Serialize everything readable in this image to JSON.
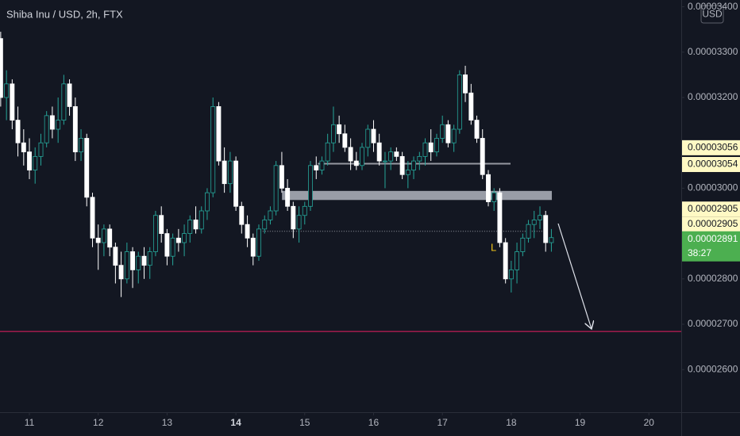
{
  "chart_data": {
    "type": "candlestick",
    "title": "Shiba Inu / USD, 2h, FTX",
    "currency": "USD",
    "countdown": "38:27",
    "annotation": "L",
    "x": [
      10.583,
      10.667,
      10.75,
      10.833,
      10.917,
      11,
      11.083,
      11.167,
      11.25,
      11.333,
      11.417,
      11.5,
      11.583,
      11.667,
      11.75,
      11.833,
      11.917,
      12,
      12.083,
      12.167,
      12.25,
      12.333,
      12.417,
      12.5,
      12.583,
      12.667,
      12.75,
      12.833,
      12.917,
      13,
      13.083,
      13.167,
      13.25,
      13.333,
      13.417,
      13.5,
      13.583,
      13.667,
      13.75,
      13.833,
      13.917,
      14,
      14.083,
      14.167,
      14.25,
      14.333,
      14.417,
      14.5,
      14.583,
      14.667,
      14.75,
      14.833,
      14.917,
      15,
      15.083,
      15.167,
      15.25,
      15.333,
      15.417,
      15.5,
      15.583,
      15.667,
      15.75,
      15.833,
      15.917,
      16,
      16.083,
      16.167,
      16.25,
      16.333,
      16.417,
      16.5,
      16.583,
      16.667,
      16.75,
      16.833,
      16.917,
      17,
      17.083,
      17.167,
      17.25,
      17.333,
      17.417,
      17.5,
      17.583,
      17.667,
      17.75,
      17.833,
      17.917,
      18,
      18.083,
      18.167,
      18.25,
      18.333,
      18.417,
      18.5,
      18.583
    ],
    "open": [
      3.33e-05,
      3.2e-05,
      3.23e-05,
      3.15e-05,
      3.1e-05,
      3.08e-05,
      3.04e-05,
      3.07e-05,
      3.1e-05,
      3.16e-05,
      3.13e-05,
      3.15e-05,
      3.23e-05,
      3.18e-05,
      3.08e-05,
      3.11e-05,
      2.98e-05,
      2.89e-05,
      2.88e-05,
      2.91e-05,
      2.87e-05,
      2.83e-05,
      2.8e-05,
      2.86e-05,
      2.82e-05,
      2.85e-05,
      2.83e-05,
      2.86e-05,
      2.94e-05,
      2.9e-05,
      2.85e-05,
      2.89e-05,
      2.88e-05,
      2.9e-05,
      2.93e-05,
      2.91e-05,
      2.95e-05,
      2.99e-05,
      3.18e-05,
      3.06e-05,
      3.01e-05,
      3.06e-05,
      2.96e-05,
      2.92e-05,
      2.89e-05,
      2.85e-05,
      2.91e-05,
      2.93e-05,
      2.95e-05,
      3.05e-05,
      3e-05,
      2.96e-05,
      2.91e-05,
      2.94e-05,
      2.96e-05,
      3.05e-05,
      3.04e-05,
      3.06e-05,
      3.1e-05,
      3.14e-05,
      3.12e-05,
      3.09e-05,
      3.06e-05,
      3.05e-05,
      3.09e-05,
      3.13e-05,
      3.1e-05,
      3.06e-05,
      3.06e-05,
      3.08e-05,
      3.07e-05,
      3.03e-05,
      3.04e-05,
      3.06e-05,
      3.07e-05,
      3.1e-05,
      3.08e-05,
      3.11e-05,
      3.14e-05,
      3.1e-05,
      3.13e-05,
      3.25e-05,
      3.21e-05,
      3.15e-05,
      3.11e-05,
      3.03e-05,
      2.97e-05,
      2.99e-05,
      2.88e-05,
      2.8e-05,
      2.82e-05,
      2.86e-05,
      2.89e-05,
      2.92e-05,
      2.93e-05,
      2.94e-05,
      2.88e-05
    ],
    "high": [
      3.345e-05,
      3.26e-05,
      3.24e-05,
      3.18e-05,
      3.13e-05,
      3.11e-05,
      3.09e-05,
      3.12e-05,
      3.17e-05,
      3.18e-05,
      3.2e-05,
      3.25e-05,
      3.24e-05,
      3.2e-05,
      3.13e-05,
      3.12e-05,
      2.99e-05,
      2.92e-05,
      2.92e-05,
      2.92e-05,
      2.88e-05,
      2.86e-05,
      2.88e-05,
      2.87e-05,
      2.86e-05,
      2.87e-05,
      2.87e-05,
      2.95e-05,
      2.96e-05,
      2.91e-05,
      2.9e-05,
      2.91e-05,
      2.92e-05,
      2.94e-05,
      2.96e-05,
      2.96e-05,
      3e-05,
      3.2e-05,
      3.19e-05,
      3.09e-05,
      3.08e-05,
      3.07e-05,
      2.97e-05,
      2.94e-05,
      2.9e-05,
      2.92e-05,
      2.94e-05,
      2.96e-05,
      3.06e-05,
      3.08e-05,
      3.02e-05,
      2.97e-05,
      2.96e-05,
      2.97e-05,
      3.06e-05,
      3.07e-05,
      3.07e-05,
      3.12e-05,
      3.18e-05,
      3.16e-05,
      3.14e-05,
      3.11e-05,
      3.08e-05,
      3.1e-05,
      3.14e-05,
      3.15e-05,
      3.12e-05,
      3.08e-05,
      3.09e-05,
      3.09e-05,
      3.08e-05,
      3.06e-05,
      3.07e-05,
      3.08e-05,
      3.11e-05,
      3.13e-05,
      3.12e-05,
      3.16e-05,
      3.15e-05,
      3.14e-05,
      3.26e-05,
      3.27e-05,
      3.23e-05,
      3.16e-05,
      3.13e-05,
      3.04e-05,
      3e-05,
      3e-05,
      2.89e-05,
      2.84e-05,
      2.88e-05,
      2.9e-05,
      2.93e-05,
      2.95e-05,
      2.96e-05,
      2.95e-05,
      2.91e-05
    ],
    "low": [
      3.18e-05,
      3.15e-05,
      3.13e-05,
      3.07e-05,
      3.05e-05,
      3.02e-05,
      3.01e-05,
      3.05e-05,
      3.09e-05,
      3.11e-05,
      3.1e-05,
      3.14e-05,
      3.16e-05,
      3.06e-05,
      3.06e-05,
      2.96e-05,
      2.87e-05,
      2.82e-05,
      2.85e-05,
      2.85e-05,
      2.79e-05,
      2.76e-05,
      2.79e-05,
      2.78e-05,
      2.79e-05,
      2.8e-05,
      2.8e-05,
      2.85e-05,
      2.88e-05,
      2.83e-05,
      2.83e-05,
      2.86e-05,
      2.85e-05,
      2.88e-05,
      2.9e-05,
      2.9e-05,
      2.93e-05,
      2.98e-05,
      3.05e-05,
      2.99e-05,
      2.99e-05,
      2.95e-05,
      2.9e-05,
      2.87e-05,
      2.83e-05,
      2.84e-05,
      2.9e-05,
      2.92e-05,
      2.94e-05,
      2.99e-05,
      2.95e-05,
      2.89e-05,
      2.88e-05,
      2.92e-05,
      2.95e-05,
      3.02e-05,
      3.03e-05,
      3.05e-05,
      3.08e-05,
      3.1e-05,
      3.08e-05,
      3.04e-05,
      3.04e-05,
      3.04e-05,
      3.07e-05,
      3.08e-05,
      3.05e-05,
      3e-05,
      3.04e-05,
      3.06e-05,
      3.02e-05,
      3e-05,
      3.02e-05,
      3.04e-05,
      3.05e-05,
      3.06e-05,
      3.07e-05,
      3.1e-05,
      3.09e-05,
      3.08e-05,
      3.12e-05,
      3.19e-05,
      3.14e-05,
      3.1e-05,
      3.02e-05,
      2.96e-05,
      2.95e-05,
      2.87e-05,
      2.79e-05,
      2.77e-05,
      2.79e-05,
      2.85e-05,
      2.88e-05,
      2.89e-05,
      2.91e-05,
      2.86e-05,
      2.86e-05
    ],
    "close": [
      3.2e-05,
      3.23e-05,
      3.15e-05,
      3.1e-05,
      3.08e-05,
      3.04e-05,
      3.07e-05,
      3.1e-05,
      3.16e-05,
      3.13e-05,
      3.15e-05,
      3.23e-05,
      3.18e-05,
      3.08e-05,
      3.11e-05,
      2.98e-05,
      2.89e-05,
      2.88e-05,
      2.91e-05,
      2.87e-05,
      2.83e-05,
      2.8e-05,
      2.86e-05,
      2.82e-05,
      2.85e-05,
      2.83e-05,
      2.86e-05,
      2.94e-05,
      2.9e-05,
      2.85e-05,
      2.89e-05,
      2.88e-05,
      2.9e-05,
      2.93e-05,
      2.91e-05,
      2.95e-05,
      2.99e-05,
      3.18e-05,
      3.06e-05,
      3.01e-05,
      3.06e-05,
      2.96e-05,
      2.92e-05,
      2.89e-05,
      2.85e-05,
      2.91e-05,
      2.93e-05,
      2.95e-05,
      3.05e-05,
      3e-05,
      2.96e-05,
      2.91e-05,
      2.94e-05,
      2.96e-05,
      3.05e-05,
      3.04e-05,
      3.06e-05,
      3.1e-05,
      3.14e-05,
      3.12e-05,
      3.09e-05,
      3.06e-05,
      3.05e-05,
      3.09e-05,
      3.13e-05,
      3.1e-05,
      3.06e-05,
      3.06e-05,
      3.08e-05,
      3.07e-05,
      3.03e-05,
      3.04e-05,
      3.06e-05,
      3.07e-05,
      3.1e-05,
      3.08e-05,
      3.11e-05,
      3.14e-05,
      3.1e-05,
      3.13e-05,
      3.25e-05,
      3.21e-05,
      3.15e-05,
      3.11e-05,
      3.03e-05,
      2.97e-05,
      2.99e-05,
      2.88e-05,
      2.8e-05,
      2.82e-05,
      2.86e-05,
      2.89e-05,
      2.92e-05,
      2.93e-05,
      2.94e-05,
      2.88e-05,
      2.891e-05
    ],
    "up_color": "#26a69a",
    "down_color": "#ffffff",
    "xlim": [
      10.573,
      20.47
    ],
    "xticks": [
      11,
      12,
      13,
      14,
      15,
      16,
      17,
      18,
      19,
      20
    ],
    "ylim": [
      2.506e-05,
      3.415e-05
    ],
    "yticks": [
      {
        "value": 2.6e-05,
        "label": "0.00002600"
      },
      {
        "value": 2.7e-05,
        "label": "0.00002700"
      },
      {
        "value": 2.8e-05,
        "label": "0.00002800"
      },
      {
        "value": 3e-05,
        "label": "0.00003000"
      },
      {
        "value": 3.2e-05,
        "label": "0.00003200"
      },
      {
        "value": 3.3e-05,
        "label": "0.00003300"
      },
      {
        "value": 3.4e-05,
        "label": "0.00003400"
      }
    ],
    "price_tags": [
      {
        "value": 3.056e-05,
        "label": "0.00003056"
      },
      {
        "value": 3.054e-05,
        "label": "0.00003054"
      },
      {
        "value": 2.905e-05,
        "label": "0.00002905"
      },
      {
        "value": 2.905e-05,
        "label": "0.00002905"
      },
      {
        "value": 2.891e-05,
        "label": "0.00002891"
      }
    ],
    "horizontal_lines": [
      {
        "value": 3.054e-05,
        "x": [
          15.19,
          17.99
        ],
        "color": "#9598a1"
      },
      {
        "value": 2.905e-05,
        "x": [
          14.32,
          18.53
        ],
        "color": "#9598a1"
      },
      {
        "value": 2.684e-05,
        "x": [
          10.573,
          20.47
        ],
        "color": "#e91e63"
      }
    ],
    "zone": {
      "values": [
        2.974e-05,
        2.994e-05
      ],
      "x": [
        14.67,
        18.59
      ],
      "color": "#b2b5be"
    }
  }
}
